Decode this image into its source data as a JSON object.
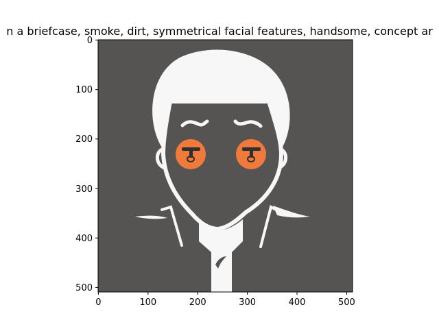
{
  "figure": {
    "title": "n a briefcase,  smoke, dirt, symmetrical facial features, handsome, concept ar"
  },
  "image": {
    "width": 512,
    "height": 512,
    "background_color": "#565453",
    "figure_color": "#f7f7f7",
    "eye_color": "#f07a3c",
    "x_ticks": [
      "0",
      "100",
      "200",
      "300",
      "400",
      "500"
    ],
    "y_ticks": [
      "0",
      "100",
      "200",
      "300",
      "400",
      "500"
    ]
  }
}
